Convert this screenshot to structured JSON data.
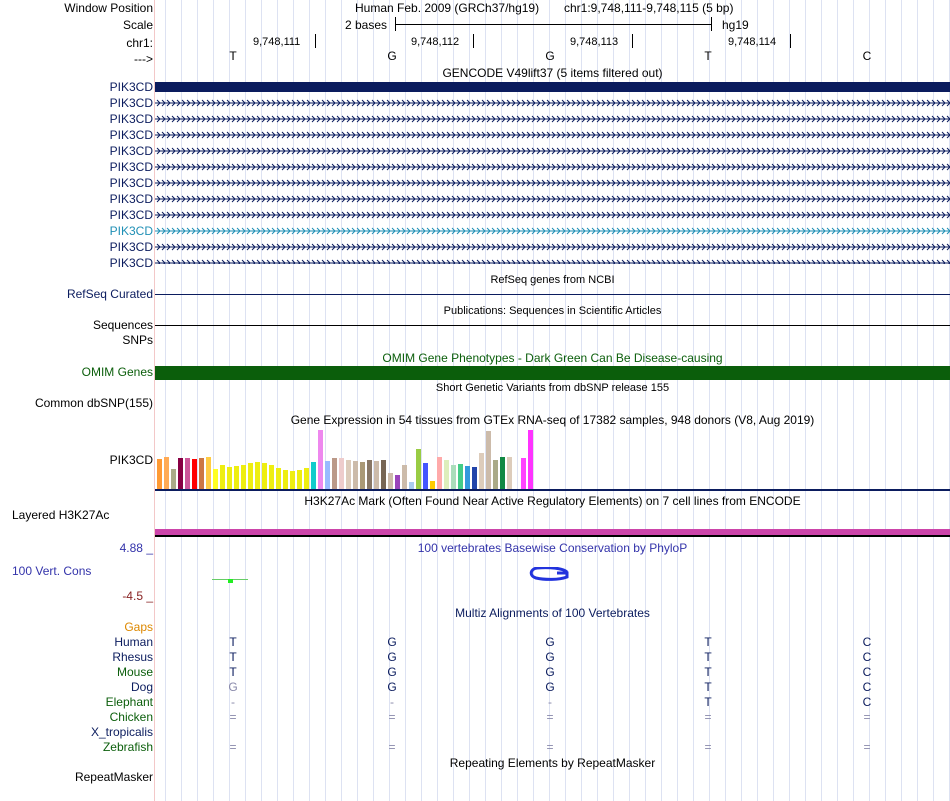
{
  "header": {
    "window_position_label": "Window Position",
    "scale_label": "Scale",
    "chrom_label": "chr1:",
    "strand_label": "--->",
    "assembly_text": "Human Feb. 2009 (GRCh37/hg19)",
    "position_text": "chr1:9,748,111-9,748,115 (5 bp)",
    "scale_text": "2 bases",
    "db_text": "hg19",
    "coords": [
      "9,748,111",
      "9,748,112",
      "9,748,113",
      "9,748,114"
    ]
  },
  "sequence": [
    "T",
    "G",
    "G",
    "T",
    "C"
  ],
  "gencode": {
    "title": "GENCODE V49lift37 (5 items filtered out)",
    "labels": [
      "PIK3CD",
      "PIK3CD",
      "PIK3CD",
      "PIK3CD",
      "PIK3CD",
      "PIK3CD",
      "PIK3CD",
      "PIK3CD",
      "PIK3CD",
      "PIK3CD",
      "PIK3CD",
      "PIK3CD"
    ],
    "colors": [
      "#0b1c5e",
      "#0b1c5e",
      "#0b1c5e",
      "#0b1c5e",
      "#0b1c5e",
      "#0b1c5e",
      "#0b1c5e",
      "#0b1c5e",
      "#0b1c5e",
      "#1f8fb5",
      "#0b1c5e",
      "#0b1c5e"
    ]
  },
  "refseq": {
    "title": "RefSeq genes from NCBI",
    "label": "RefSeq Curated"
  },
  "publications": {
    "title": "Publications: Sequences in Scientific Articles",
    "label": "Sequences"
  },
  "snps_label": "SNPs",
  "omim": {
    "title": "OMIM Gene Phenotypes - Dark Green Can Be Disease-causing",
    "label": "OMIM Genes",
    "color": "#0b5e0b"
  },
  "dbsnp": {
    "title": "Short Genetic Variants from dbSNP release 155",
    "label": "Common dbSNP(155)"
  },
  "gtex": {
    "title": "Gene Expression in 54 tissues from GTEx RNA-seq of 17382 samples, 948 donors (V8, Aug 2019)",
    "label": "PIK3CD",
    "values": [
      30,
      32,
      20,
      31,
      31,
      30,
      31,
      32,
      20,
      24,
      22,
      23,
      24,
      26,
      27,
      26,
      24,
      21,
      19,
      18,
      19,
      21,
      27,
      59,
      28,
      31,
      31,
      29,
      28,
      27,
      29,
      28,
      29,
      16,
      14,
      24,
      7,
      40,
      26,
      8,
      32,
      29,
      24,
      25,
      23,
      22,
      36,
      58,
      29,
      32,
      32,
      0,
      31,
      59
    ],
    "colors": [
      "#ff9933",
      "#ffaa55",
      "#aaaa88",
      "#880044",
      "#cc5599",
      "#ff0000",
      "#cc7744",
      "#ffcc44",
      "#ffff22",
      "#eeee11",
      "#eeee11",
      "#eeee11",
      "#eeee11",
      "#eeee11",
      "#eeee11",
      "#eeee11",
      "#eeee11",
      "#eeee11",
      "#eeee11",
      "#eeee11",
      "#eeee11",
      "#eeee11",
      "#11cccc",
      "#ee88ee",
      "#99bbff",
      "#bb9988",
      "#eecccc",
      "#ddccbb",
      "#ccbbaa",
      "#aa9977",
      "#887766",
      "#ccbbaa",
      "#776655",
      "#ccbbaa",
      "#9944bb",
      "#ccbbaa",
      "#aaccee",
      "#99cc44",
      "#4455ff",
      "#ffcc00",
      "#ffaaaa",
      "#ddeebb",
      "#aaddbb",
      "#44cc88",
      "#3399dd",
      "#2244aa",
      "#ddccbb",
      "#ccbbaa",
      "#aaaa88",
      "#118844",
      "#ddccbb",
      "#ffffff",
      "#ff44ff",
      "#ff33ff"
    ]
  },
  "h3k27ac": {
    "title": "H3K27Ac Mark (Often Found Near Active Regulatory Elements) on 7 cell lines from ENCODE",
    "label": "Layered H3K27Ac"
  },
  "phylop": {
    "title": "100 vertebrates Basewise Conservation by PhyloP",
    "label": "100 Vert. Cons",
    "max_label": "4.88 _",
    "min_label": "-4.5 _"
  },
  "multiz": {
    "title": "Multiz Alignments of 100 Vertebrates",
    "gaps_label": "Gaps",
    "species": [
      {
        "name": "Human",
        "bases": [
          "T",
          "G",
          "G",
          "T",
          "C"
        ],
        "color": "#0b1c5e"
      },
      {
        "name": "Rhesus",
        "bases": [
          "T",
          "G",
          "G",
          "T",
          "C"
        ],
        "color": "#0b1c5e"
      },
      {
        "name": "Mouse",
        "bases": [
          "T",
          "G",
          "G",
          "T",
          "C"
        ],
        "color": "#0b5e0b"
      },
      {
        "name": "Dog",
        "bases": [
          "G",
          "G",
          "G",
          "T",
          "C"
        ],
        "color": "#0b1c5e"
      },
      {
        "name": "Elephant",
        "bases": [
          "-",
          "-",
          "-",
          "T",
          "C"
        ],
        "color": "#0b5e0b"
      },
      {
        "name": "Chicken",
        "bases": [
          "=",
          "=",
          "=",
          "=",
          "="
        ],
        "color": "#0b5e0b"
      },
      {
        "name": "X_tropicalis",
        "bases": [
          "",
          "",
          "",
          "",
          ""
        ],
        "color": "#0b1c5e"
      },
      {
        "name": "Zebrafish",
        "bases": [
          "=",
          "=",
          "=",
          "=",
          "="
        ],
        "color": "#0b5e0b"
      }
    ]
  },
  "repeatmasker": {
    "title": "Repeating Elements by RepeatMasker",
    "label": "RepeatMasker"
  },
  "colors": {
    "navy": "#0b1c5e",
    "dark_green": "#0b5e0b",
    "pink": "#cc44aa",
    "phylop_max": "#3333aa",
    "phylop_min": "#882222",
    "gaps": "#dd8800"
  }
}
